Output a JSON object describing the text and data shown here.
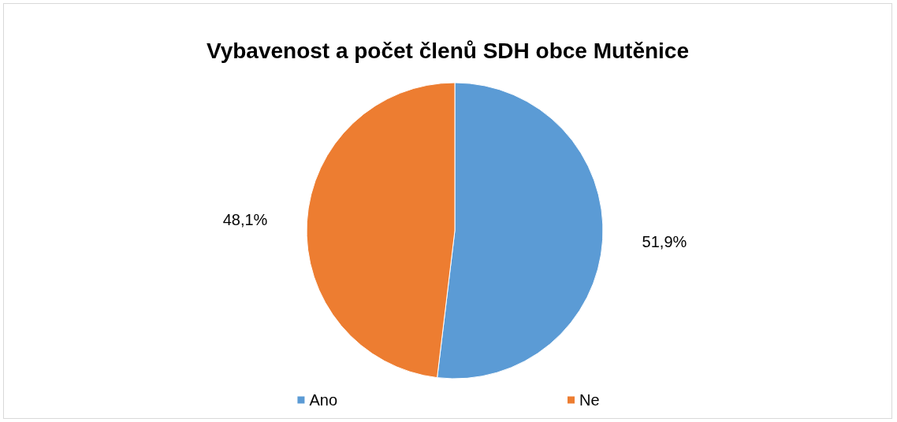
{
  "chart_data": {
    "type": "pie",
    "title": "Vybavenost a počet členů SDH obce Mutěnice",
    "categories": [
      "Ano",
      "Ne"
    ],
    "values": [
      51.9,
      48.1
    ],
    "colors": [
      "#5b9bd5",
      "#ed7d31"
    ],
    "value_labels": [
      "51,9%",
      "48,1%"
    ],
    "legend": "bottom"
  }
}
